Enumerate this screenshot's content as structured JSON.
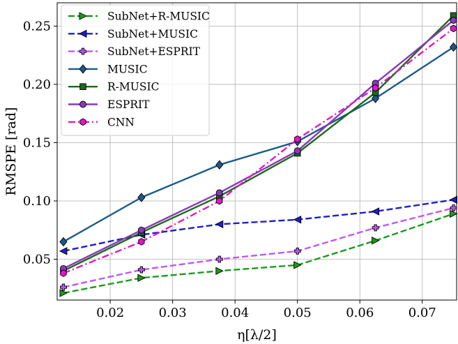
{
  "chart_data": {
    "type": "line",
    "xlabel": "η[λ/2]",
    "ylabel": "RMSPE [rad]",
    "xlim": [
      0.0115,
      0.0755
    ],
    "ylim": [
      0.015,
      0.27
    ],
    "xticks": [
      0.02,
      0.03,
      0.04,
      0.05,
      0.06,
      0.07
    ],
    "xtick_labels": [
      "0.02",
      "0.03",
      "0.04",
      "0.05",
      "0.06",
      "0.07"
    ],
    "yticks": [
      0.05,
      0.1,
      0.15,
      0.2,
      0.25
    ],
    "ytick_labels": [
      "0.05",
      "0.10",
      "0.15",
      "0.20",
      "0.25"
    ],
    "grid": true,
    "legend_position": "top-left",
    "x": [
      0.0125,
      0.025,
      0.0375,
      0.05,
      0.0625,
      0.075
    ],
    "series": [
      {
        "name": "SubNet+R-MUSIC",
        "color": "#1a9a1a",
        "linestyle": "dashed",
        "marker": "triangle-right",
        "values": [
          0.021,
          0.034,
          0.04,
          0.045,
          0.066,
          0.089
        ]
      },
      {
        "name": "SubNet+MUSIC",
        "color": "#1e1ec8",
        "linestyle": "dashed",
        "marker": "triangle-left",
        "values": [
          0.057,
          0.071,
          0.08,
          0.084,
          0.091,
          0.101
        ]
      },
      {
        "name": "SubNet+ESPRIT",
        "color": "#c058f0",
        "linestyle": "dashed",
        "marker": "plus",
        "values": [
          0.026,
          0.041,
          0.05,
          0.057,
          0.077,
          0.094
        ]
      },
      {
        "name": "MUSIC",
        "color": "#1c5a8a",
        "linestyle": "solid",
        "marker": "diamond",
        "values": [
          0.065,
          0.103,
          0.131,
          0.151,
          0.188,
          0.232
        ]
      },
      {
        "name": "R-MUSIC",
        "color": "#1a6a1a",
        "linestyle": "solid",
        "marker": "square",
        "values": [
          0.04,
          0.073,
          0.104,
          0.141,
          0.193,
          0.259
        ]
      },
      {
        "name": "ESPRIT",
        "color": "#8a38b8",
        "linestyle": "solid",
        "marker": "circle",
        "values": [
          0.042,
          0.075,
          0.107,
          0.143,
          0.201,
          0.255
        ]
      },
      {
        "name": "CNN",
        "color": "#e018c8",
        "linestyle": "dashdot",
        "marker": "hexagon",
        "values": [
          0.038,
          0.065,
          0.1,
          0.153,
          0.197,
          0.248
        ]
      }
    ]
  }
}
